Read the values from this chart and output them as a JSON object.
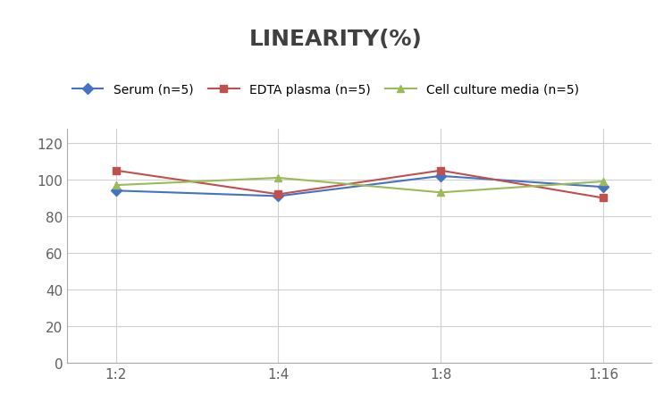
{
  "title": "LINEARITY(%)",
  "title_fontsize": 18,
  "title_fontweight": "bold",
  "title_color": "#404040",
  "x_labels": [
    "1:2",
    "1:4",
    "1:8",
    "1:16"
  ],
  "x_positions": [
    0,
    1,
    2,
    3
  ],
  "series": [
    {
      "label": "Serum (n=5)",
      "color": "#4472C4",
      "marker": "D",
      "marker_color": "#4472C4",
      "values": [
        94,
        91,
        102,
        96
      ]
    },
    {
      "label": "EDTA plasma (n=5)",
      "color": "#C0504D",
      "marker": "s",
      "marker_color": "#C0504D",
      "values": [
        105,
        92,
        105,
        90
      ]
    },
    {
      "label": "Cell culture media (n=5)",
      "color": "#9BBB59",
      "marker": "^",
      "marker_color": "#9BBB59",
      "values": [
        97,
        101,
        93,
        99
      ]
    }
  ],
  "ylim": [
    0,
    128
  ],
  "yticks": [
    0,
    20,
    40,
    60,
    80,
    100,
    120
  ],
  "grid_color": "#D0D0D0",
  "background_color": "#FFFFFF",
  "legend_fontsize": 10,
  "axis_fontsize": 11,
  "tick_color": "#606060"
}
